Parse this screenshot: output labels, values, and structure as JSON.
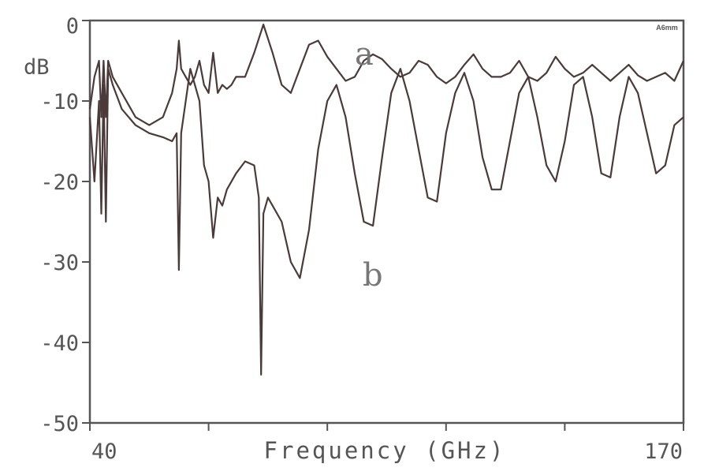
{
  "chart_data": {
    "type": "line",
    "title": "",
    "xlabel": "Frequency (GHz)",
    "ylabel": "dB",
    "xlim": [
      40,
      170
    ],
    "ylim": [
      -50,
      0
    ],
    "x_tick_labels": [
      "40",
      "170"
    ],
    "y_ticks": [
      0,
      -10,
      -20,
      -30,
      -40,
      -50
    ],
    "y_tick_labels": [
      "0",
      "-10",
      "-20",
      "-30",
      "-40",
      "-50"
    ],
    "grid": false,
    "corner_mark": "A6mm",
    "series": [
      {
        "name": "a",
        "x": [
          40,
          41,
          42,
          42.5,
          43,
          43.5,
          44,
          45,
          47,
          50,
          53,
          56,
          58,
          59,
          59.5,
          60,
          61,
          62,
          63,
          64,
          65,
          66,
          67,
          68,
          69,
          70,
          71,
          72,
          74,
          76,
          78,
          80,
          82,
          84,
          86,
          88,
          90,
          92,
          94,
          96,
          98,
          100,
          102,
          104,
          106,
          108,
          110,
          112,
          114,
          116,
          118,
          120,
          122,
          124,
          126,
          128,
          130,
          132,
          134,
          136,
          138,
          140,
          142,
          144,
          146,
          148,
          150,
          152,
          154,
          156,
          158,
          160,
          162,
          164,
          166,
          168,
          170
        ],
        "y": [
          -11,
          -7,
          -5,
          -12,
          -5,
          -12,
          -5,
          -7,
          -9,
          -12,
          -13,
          -12,
          -9,
          -6,
          -2.5,
          -6,
          -7,
          -8,
          -7,
          -5,
          -8,
          -9,
          -4,
          -9,
          -8,
          -8.5,
          -8,
          -7,
          -7,
          -4,
          -0.5,
          -4,
          -8,
          -9,
          -6,
          -3,
          -2.5,
          -4.5,
          -6,
          -7.5,
          -7,
          -5,
          -4.2,
          -4.8,
          -6,
          -7,
          -6.5,
          -5,
          -5.5,
          -7,
          -7.8,
          -7,
          -5.5,
          -4.2,
          -6,
          -7,
          -7,
          -6.5,
          -5,
          -7,
          -7.5,
          -6.5,
          -4.5,
          -6,
          -7,
          -6.5,
          -5.5,
          -6.5,
          -7.5,
          -6.5,
          -5.5,
          -6.8,
          -7.5,
          -7,
          -6.5,
          -7.5,
          -5
        ]
      },
      {
        "name": "b",
        "x": [
          40,
          41,
          42,
          42.5,
          43,
          43.5,
          44,
          45,
          47,
          50,
          53,
          56,
          58,
          59,
          59.5,
          60,
          61,
          62,
          63,
          64,
          65,
          66,
          67,
          68,
          69,
          70,
          72,
          74,
          76,
          77,
          77.5,
          78,
          79,
          80,
          82,
          84,
          86,
          88,
          90,
          92,
          94,
          96,
          98,
          100,
          102,
          104,
          106,
          108,
          110,
          112,
          114,
          116,
          118,
          120,
          122,
          124,
          126,
          128,
          130,
          132,
          134,
          136,
          138,
          140,
          142,
          144,
          146,
          148,
          150,
          152,
          154,
          156,
          158,
          160,
          162,
          164,
          166,
          168,
          170
        ],
        "y": [
          -12,
          -20,
          -10,
          -24,
          -8,
          -25,
          -6,
          -8,
          -11,
          -13,
          -14,
          -14.5,
          -15,
          -14,
          -31,
          -14,
          -10,
          -6,
          -8,
          -10,
          -18,
          -20,
          -27,
          -22,
          -23,
          -21,
          -19,
          -17.5,
          -18,
          -22,
          -44,
          -24,
          -22,
          -23,
          -25,
          -30,
          -32,
          -26,
          -16,
          -10,
          -8,
          -12,
          -19,
          -25,
          -25.5,
          -17,
          -9,
          -6,
          -10,
          -16,
          -22,
          -22.5,
          -14,
          -9,
          -6.5,
          -10,
          -17,
          -21,
          -21,
          -15,
          -9,
          -7,
          -12,
          -18,
          -20,
          -15,
          -8,
          -7,
          -12,
          -19,
          -19.5,
          -12,
          -7,
          -9,
          -14,
          -19,
          -18,
          -13,
          -12
        ]
      }
    ],
    "annotations": [
      "a",
      "b"
    ]
  }
}
